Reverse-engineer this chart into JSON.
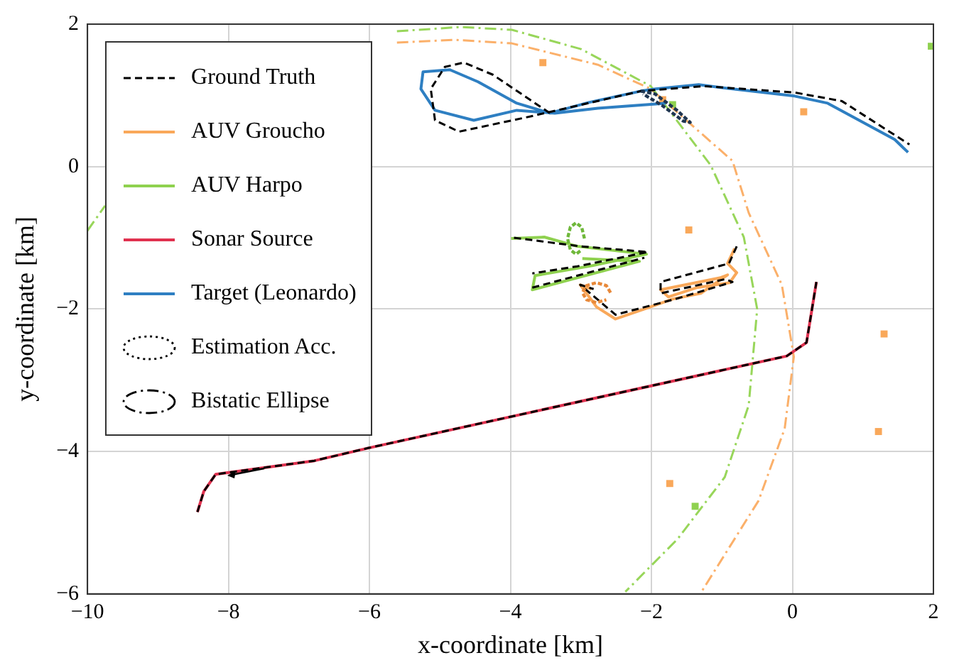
{
  "chart_data": {
    "type": "line",
    "xlabel": "x-coordinate [km]",
    "ylabel": "y-coordinate [km]",
    "xlim": [
      -10,
      2
    ],
    "ylim": [
      -6,
      2
    ],
    "xticks": [
      {
        "value": -10,
        "label": "−10"
      },
      {
        "value": -8,
        "label": "−8"
      },
      {
        "value": -6,
        "label": "−6"
      },
      {
        "value": -4,
        "label": "−4"
      },
      {
        "value": -2,
        "label": "−2"
      },
      0,
      2
    ],
    "yticks": [
      {
        "value": -6,
        "label": "−6"
      },
      {
        "value": -4,
        "label": "−4"
      },
      {
        "value": -2,
        "label": "−2"
      },
      0,
      2
    ],
    "grid": true,
    "legend": "top left",
    "annotations": [
      "Estimation Acc.",
      "Bistatic Ellipse"
    ],
    "series": [
      {
        "name": "Ground Truth",
        "color": "#000000",
        "line_style": "dashed",
        "x": [
          -8.44,
          -8.35,
          -8.18,
          -6.78,
          -6.01,
          -0.08,
          0.2,
          0.34,
          null,
          -3.44,
          -4.25,
          -4.66,
          -4.93,
          -5.13,
          -5.07,
          -4.73,
          -3.78,
          -2.15,
          -1.26,
          0.03,
          0.7,
          1.66,
          null,
          -0.79,
          -0.9,
          -1.87,
          -1.87,
          -0.95,
          -0.85,
          -1.66,
          -2.51,
          -3.01,
          -2.82,
          null,
          -3.95,
          -3.0,
          -2.05,
          -3.05,
          -3.69,
          null,
          -3.69,
          -2.1
        ],
        "values": [
          -4.85,
          -4.56,
          -4.32,
          -4.13,
          -3.95,
          -2.66,
          -2.47,
          -1.62,
          null,
          0.75,
          1.29,
          1.46,
          1.4,
          1.09,
          0.65,
          0.49,
          0.69,
          1.06,
          1.13,
          1.04,
          0.92,
          0.31,
          null,
          -1.12,
          -1.36,
          -1.62,
          -1.78,
          -1.58,
          -1.62,
          -1.86,
          -2.08,
          -1.66,
          -1.72,
          null,
          -1.0,
          -1.12,
          -1.2,
          -1.4,
          -1.5,
          null,
          -1.7,
          -1.28
        ]
      },
      {
        "name": "AUV Groucho",
        "color": "#f9a85a",
        "line_style": "solid",
        "x": [
          -0.82,
          -0.92,
          -0.79,
          -0.89,
          -1.36,
          -1.76,
          -1.87,
          -1.02,
          -0.92,
          -1.3,
          -1.7,
          -2.1,
          -2.51,
          -2.78,
          -3.01,
          -2.85
        ],
        "values": [
          -1.15,
          -1.36,
          -1.49,
          -1.63,
          -1.7,
          -1.83,
          -1.73,
          -1.56,
          -1.52,
          -1.78,
          -1.86,
          -2.0,
          -2.14,
          -1.97,
          -1.66,
          -1.72
        ]
      },
      {
        "name": "AUV Harpo",
        "color": "#8fd14f",
        "line_style": "solid",
        "x": [
          -3.99,
          -3.52,
          -3.05,
          -2.07,
          -2.84,
          -3.65,
          -3.69,
          -3.05,
          -2.17,
          -2.98
        ],
        "values": [
          -1.01,
          -0.99,
          -1.12,
          -1.23,
          -1.39,
          -1.53,
          -1.73,
          -1.56,
          -1.33,
          -1.29
        ]
      },
      {
        "name": "Sonar Source",
        "color": "#e0314f",
        "line_style": "solid",
        "x": [
          -8.44,
          -8.35,
          -8.18,
          -6.78,
          -6.01,
          -0.08,
          0.2,
          0.34
        ],
        "values": [
          -4.85,
          -4.56,
          -4.32,
          -4.13,
          -3.95,
          -2.66,
          -2.47,
          -1.62
        ]
      },
      {
        "name": "Target (Leonardo)",
        "color": "#2e7fc2",
        "line_style": "solid",
        "x": [
          -1.8,
          -2.76,
          -3.37,
          -3.91,
          -4.52,
          -5.07,
          -5.27,
          -5.24,
          -4.86,
          -4.46,
          -3.91,
          -3.44,
          -2.89,
          -2.15,
          -1.94,
          -1.33,
          -0.85,
          0.03,
          0.5,
          1.45,
          1.64
        ],
        "values": [
          0.89,
          0.82,
          0.75,
          0.79,
          0.65,
          0.79,
          1.09,
          1.33,
          1.36,
          1.19,
          0.89,
          0.75,
          0.9,
          1.06,
          1.09,
          1.15,
          1.09,
          0.99,
          0.89,
          0.38,
          0.2
        ]
      },
      {
        "color": "#1f3550",
        "line_style": "dotted",
        "x": [
          -2.15,
          -1.95,
          -1.65,
          -1.45,
          -1.55,
          -1.85,
          -2.12
        ],
        "values": [
          1.06,
          1.02,
          0.8,
          0.62,
          0.64,
          0.86,
          1.02
        ]
      },
      {
        "color": "#e8893a",
        "line_style": "dotted",
        "x": [
          -2.58,
          -2.64,
          -2.78,
          -2.92,
          -2.98,
          -2.92,
          -2.78,
          -2.64
        ],
        "values": [
          -1.77,
          -1.67,
          -1.63,
          -1.67,
          -1.77,
          -1.87,
          -1.91,
          -1.87
        ]
      },
      {
        "color": "#6fb83a",
        "line_style": "dotted",
        "x": [
          -2.95,
          -2.99,
          -3.07,
          -3.15,
          -3.19,
          -3.15,
          -3.07,
          -2.99
        ],
        "values": [
          -1.01,
          -0.85,
          -0.79,
          -0.85,
          -1.01,
          -1.17,
          -1.23,
          -1.17
        ]
      },
      {
        "color": "#98d65a",
        "line_style": "dashdot",
        "x": [
          -10,
          -9.75,
          null,
          -5.61,
          -4.7,
          -3.98,
          -3.0,
          -2.01,
          -1.16,
          -0.69,
          -0.5,
          -0.62,
          -0.96,
          -1.63,
          -2.37
        ],
        "values": [
          -0.9,
          -0.55,
          null,
          1.9,
          1.96,
          1.92,
          1.65,
          1.13,
          0.02,
          -0.99,
          -2.0,
          -3.35,
          -4.36,
          -5.23,
          -5.97
        ]
      },
      {
        "color": "#fbb06a",
        "line_style": "dashdot",
        "x": [
          -5.61,
          -4.8,
          -3.98,
          -2.76,
          -2.01,
          -0.85,
          -0.62,
          -0.15,
          0.02,
          -0.11,
          -0.48,
          -1.29
        ],
        "values": [
          1.74,
          1.78,
          1.73,
          1.43,
          1.09,
          0.08,
          -0.65,
          -1.66,
          -2.67,
          -3.68,
          -4.69,
          -5.97
        ]
      },
      {
        "type": "scatter",
        "marker": "square",
        "color": "#f9a85a",
        "x": [
          -3.54,
          0.16,
          -1.84,
          -1.47,
          1.3,
          1.22,
          -1.74
        ],
        "values": [
          1.46,
          0.77,
          0.94,
          -0.89,
          -2.35,
          -3.72,
          -4.45
        ]
      },
      {
        "type": "scatter",
        "marker": "square",
        "color": "#8fd14f",
        "x": [
          1.97,
          -1.7,
          -1.38
        ],
        "values": [
          1.69,
          0.87,
          -4.77
        ]
      }
    ]
  }
}
